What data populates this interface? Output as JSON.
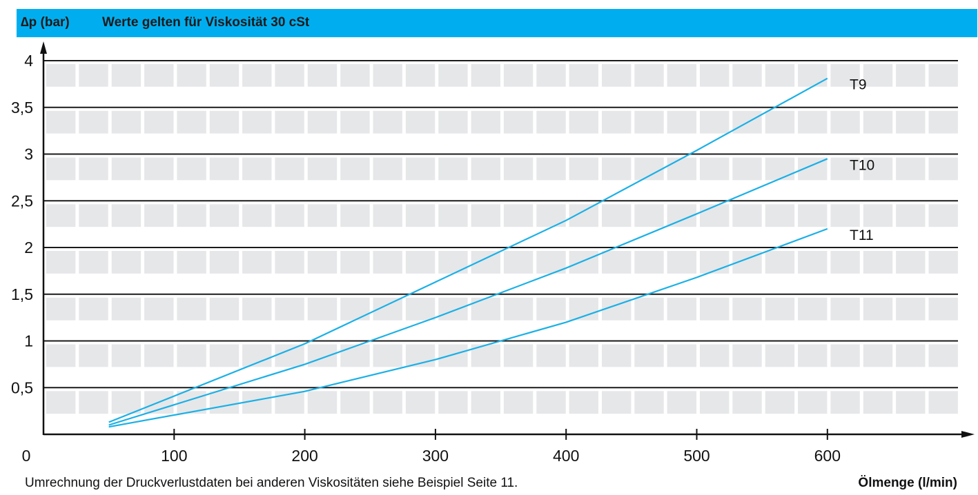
{
  "header": {
    "ylabel": "∆p (bar)",
    "title": "Werte gelten für Viskosität 30 cSt"
  },
  "footer": {
    "note": "Umrechnung der Druckverlustdaten bei anderen Viskositäten siehe Beispiel Seite 11.",
    "xlabel": "Ölmenge (l/min)"
  },
  "colors": {
    "header_bg": "#00aeef",
    "series": "#1ab0e6",
    "band": "#e6e7e9",
    "grid": "#1a1a1a"
  },
  "chart_data": {
    "type": "line",
    "title": "Werte gelten für Viskosität 30 cSt",
    "xlabel": "Ölmenge (l/min)",
    "ylabel": "∆p (bar)",
    "xlim": [
      0,
      700
    ],
    "ylim": [
      0,
      4.2
    ],
    "x_ticks": [
      {
        "value": 0,
        "label": "0"
      },
      {
        "value": 100,
        "label": "100"
      },
      {
        "value": 200,
        "label": "200"
      },
      {
        "value": 300,
        "label": "300"
      },
      {
        "value": 400,
        "label": "400"
      },
      {
        "value": 500,
        "label": "500"
      },
      {
        "value": 600,
        "label": "600"
      }
    ],
    "y_ticks": [
      {
        "value": 0.5,
        "label": "0,5"
      },
      {
        "value": 1,
        "label": "1"
      },
      {
        "value": 1.5,
        "label": "1,5"
      },
      {
        "value": 2,
        "label": "2"
      },
      {
        "value": 2.5,
        "label": "2,5"
      },
      {
        "value": 3,
        "label": "3"
      },
      {
        "value": 3.5,
        "label": "3,5"
      },
      {
        "value": 4,
        "label": "4"
      }
    ],
    "grid": true,
    "series": [
      {
        "name": "T9",
        "x": [
          50,
          200,
          300,
          400,
          500,
          600
        ],
        "y": [
          0.13,
          0.97,
          1.63,
          2.29,
          3.04,
          3.81
        ]
      },
      {
        "name": "T10",
        "x": [
          50,
          200,
          300,
          400,
          500,
          600
        ],
        "y": [
          0.1,
          0.75,
          1.25,
          1.78,
          2.36,
          2.95
        ]
      },
      {
        "name": "T11",
        "x": [
          50,
          200,
          300,
          400,
          500,
          600
        ],
        "y": [
          0.08,
          0.46,
          0.8,
          1.2,
          1.68,
          2.2
        ]
      }
    ]
  }
}
